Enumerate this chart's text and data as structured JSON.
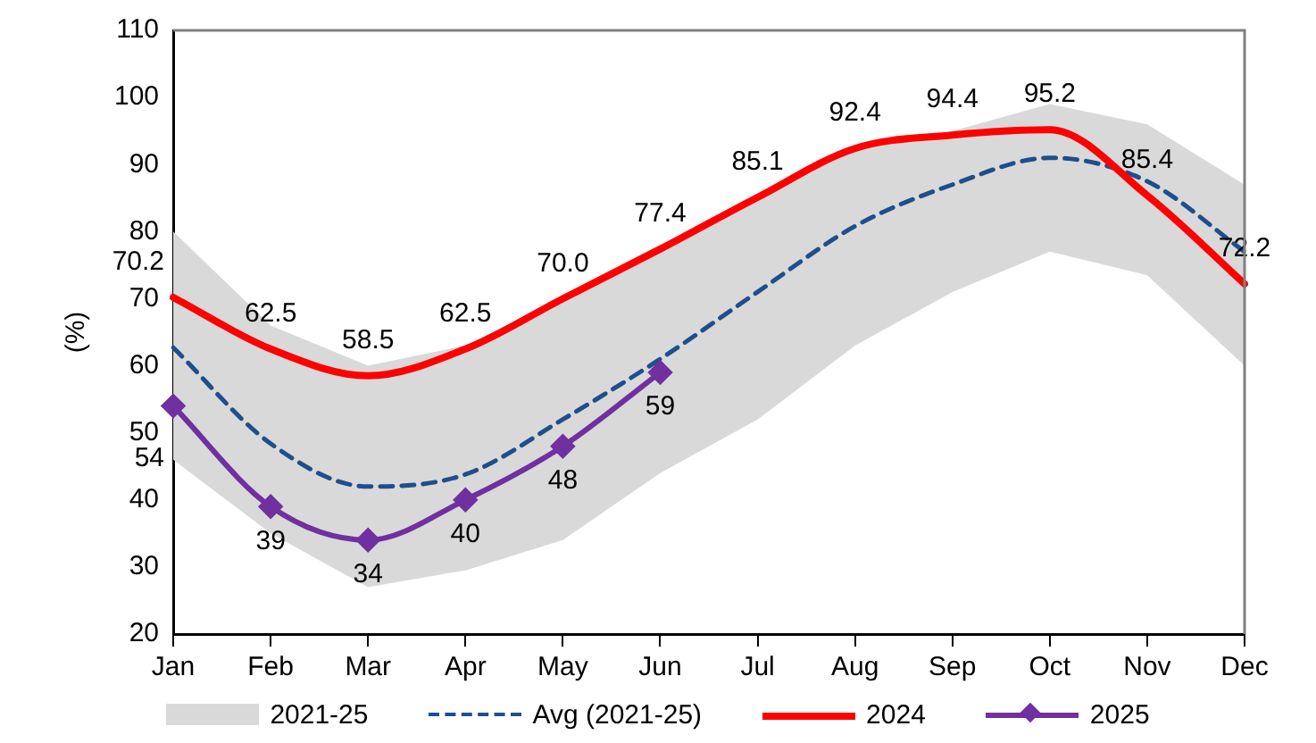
{
  "chart_data": {
    "type": "line",
    "ylabel": "(%)",
    "categories": [
      "Jan",
      "Feb",
      "Mar",
      "Apr",
      "May",
      "Jun",
      "Jul",
      "Aug",
      "Sep",
      "Oct",
      "Nov",
      "Dec"
    ],
    "ylim": [
      20,
      110
    ],
    "yticks": [
      20,
      30,
      40,
      50,
      60,
      70,
      80,
      90,
      100,
      110
    ],
    "grid": false,
    "legend": "bottom",
    "annotations": [
      "2021-25"
    ],
    "series": [
      {
        "name": "Avg (2021-25)",
        "type": "line",
        "color": "#1f4e8c",
        "line_style": "dashed",
        "marker": "none",
        "values": [
          62.7,
          48.4,
          42,
          43.8,
          52,
          61,
          71,
          80.8,
          87,
          91,
          87.5,
          77
        ],
        "lower": [
          46,
          35,
          27,
          29.5,
          34,
          44,
          52,
          63,
          71,
          77,
          73.5,
          60
        ],
        "upper": [
          80,
          66,
          60,
          63,
          70,
          77.4,
          85.1,
          92.4,
          95,
          99,
          96,
          87
        ]
      },
      {
        "name": "2024",
        "type": "line",
        "color": "#ff0000",
        "line_style": "solid",
        "marker": "none",
        "values": [
          70.2,
          62.5,
          58.5,
          62.5,
          70.0,
          77.4,
          85.1,
          92.4,
          94.4,
          95.2,
          85.4,
          72.2
        ],
        "value_labels": [
          "70.2",
          "62.5",
          "58.5",
          "62.5",
          "70.0",
          "77.4",
          "85.1",
          "92.4",
          "94.4",
          "95.2",
          "85.4",
          "72.2"
        ]
      },
      {
        "name": "2025",
        "type": "line",
        "color": "#7030a0",
        "line_style": "solid",
        "marker": "diamond",
        "values": [
          54,
          39,
          34,
          40,
          48,
          59,
          null,
          null,
          null,
          null,
          null,
          null
        ],
        "value_labels": [
          "54",
          "39",
          "34",
          "40",
          "48",
          "59",
          null,
          null,
          null,
          null,
          null,
          null
        ]
      }
    ]
  }
}
